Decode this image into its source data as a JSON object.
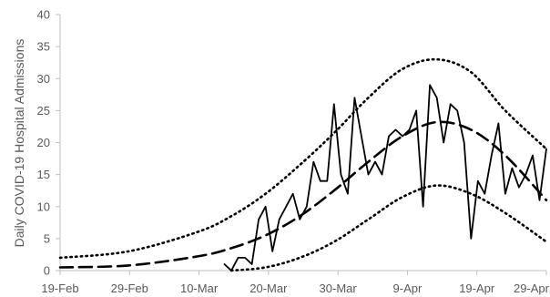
{
  "chart_data": {
    "type": "line",
    "ylabel": "Daily COVID-19 Hospital Admissions",
    "xlabel": "",
    "title": "",
    "ylim": [
      0,
      40
    ],
    "yticks": [
      0,
      5,
      10,
      15,
      20,
      25,
      30,
      35,
      40
    ],
    "xlim": [
      "2020-02-19",
      "2020-04-30"
    ],
    "xticks": [
      "19-Feb",
      "29-Feb",
      "10-Mar",
      "20-Mar",
      "30-Mar",
      "9-Apr",
      "19-Apr",
      "29-Apr"
    ],
    "grid": false,
    "legend": "none",
    "colors": {
      "lines": "#000000",
      "axis": "#bfbfbf",
      "text": "#595959"
    },
    "series": [
      {
        "style": "solid",
        "x": [
          "2020-03-14",
          "2020-03-15",
          "2020-03-16",
          "2020-03-17",
          "2020-03-18",
          "2020-03-19",
          "2020-03-20",
          "2020-03-21",
          "2020-03-22",
          "2020-03-23",
          "2020-03-24",
          "2020-03-25",
          "2020-03-26",
          "2020-03-27",
          "2020-03-28",
          "2020-03-29",
          "2020-03-30",
          "2020-03-31",
          "2020-04-01",
          "2020-04-02",
          "2020-04-03",
          "2020-04-04",
          "2020-04-05",
          "2020-04-06",
          "2020-04-07",
          "2020-04-08",
          "2020-04-09",
          "2020-04-10",
          "2020-04-11",
          "2020-04-12",
          "2020-04-13",
          "2020-04-14",
          "2020-04-15",
          "2020-04-16",
          "2020-04-17",
          "2020-04-18",
          "2020-04-19",
          "2020-04-20",
          "2020-04-21",
          "2020-04-22",
          "2020-04-23",
          "2020-04-24",
          "2020-04-25",
          "2020-04-26",
          "2020-04-27",
          "2020-04-28",
          "2020-04-29",
          "2020-04-30"
        ],
        "y": [
          1,
          0,
          2,
          2,
          1,
          8,
          10,
          3,
          8,
          10,
          12,
          8,
          10,
          17,
          14,
          14,
          26,
          15,
          12,
          27,
          21,
          15,
          17,
          15,
          21,
          22,
          21,
          22,
          25,
          10,
          29,
          27,
          20,
          26,
          25,
          20,
          5,
          14,
          12,
          18,
          23,
          12,
          16,
          13,
          15,
          18,
          11,
          19
        ]
      },
      {
        "style": "dashed",
        "x": [
          "2020-02-19",
          "2020-02-29",
          "2020-03-10",
          "2020-03-15",
          "2020-03-20",
          "2020-03-25",
          "2020-03-30",
          "2020-04-04",
          "2020-04-09",
          "2020-04-14",
          "2020-04-19",
          "2020-04-24",
          "2020-04-30"
        ],
        "y": [
          0.5,
          0.8,
          2.2,
          3.5,
          5.5,
          8.5,
          12.5,
          17,
          21,
          23.2,
          22,
          18,
          11
        ]
      },
      {
        "style": "dotted",
        "x": [
          "2020-02-19",
          "2020-02-29",
          "2020-03-10",
          "2020-03-15",
          "2020-03-20",
          "2020-03-25",
          "2020-03-30",
          "2020-04-04",
          "2020-04-09",
          "2020-04-14",
          "2020-04-19",
          "2020-04-24",
          "2020-04-30"
        ],
        "y": [
          2,
          3,
          6,
          8.5,
          12,
          16.5,
          21.5,
          27,
          31.5,
          33,
          31,
          25,
          19
        ]
      },
      {
        "style": "dotted",
        "x": [
          "2020-03-15",
          "2020-03-20",
          "2020-03-25",
          "2020-03-30",
          "2020-04-04",
          "2020-04-09",
          "2020-04-14",
          "2020-04-19",
          "2020-04-24",
          "2020-04-30"
        ],
        "y": [
          0,
          0.5,
          2,
          4.5,
          8,
          11.5,
          13.3,
          12,
          9,
          4.5
        ]
      }
    ]
  }
}
